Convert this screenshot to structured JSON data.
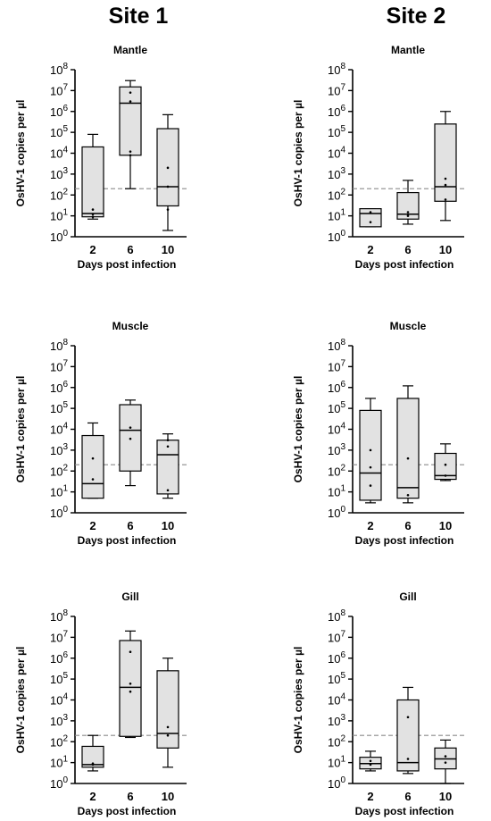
{
  "columns": [
    {
      "title": "Site 1"
    },
    {
      "title": "Site 2"
    }
  ],
  "common": {
    "ylabel": "OsHV-1 copies per µl",
    "xlabel": "Days post infection",
    "y_scale": "log10",
    "ylim": [
      1,
      100000000
    ],
    "y_ticks": [
      {
        "mant": "10",
        "exp": "0"
      },
      {
        "mant": "10",
        "exp": "1"
      },
      {
        "mant": "10",
        "exp": "2"
      },
      {
        "mant": "10",
        "exp": "3"
      },
      {
        "mant": "10",
        "exp": "4"
      },
      {
        "mant": "10",
        "exp": "5"
      },
      {
        "mant": "10",
        "exp": "6"
      },
      {
        "mant": "10",
        "exp": "7"
      },
      {
        "mant": "10",
        "exp": "8"
      }
    ],
    "categories": [
      "2",
      "6",
      "10"
    ],
    "threshold": 200,
    "colors": {
      "box_fill": "#e2e2e2",
      "box_stroke": "#000000",
      "threshold_line": "#8c8c8c",
      "points": "#000000"
    }
  },
  "chart_data": [
    {
      "type": "box",
      "site": "Site 1",
      "title": "Mantle",
      "boxes": [
        {
          "x": "2",
          "whisker_low": 7,
          "q1": 9,
          "median": 13,
          "q3": 20000,
          "whisker_high": 80000,
          "points": [
            9,
            12,
            20
          ]
        },
        {
          "x": "6",
          "whisker_low": 200,
          "q1": 8000,
          "median": 2500000,
          "q3": 15000000,
          "whisker_high": 30000000,
          "points": [
            8000,
            12000,
            3000000,
            8000000
          ]
        },
        {
          "x": "10",
          "whisker_low": 2,
          "q1": 30,
          "median": 250,
          "q3": 150000,
          "whisker_high": 700000,
          "points": [
            20,
            250,
            2000
          ]
        }
      ]
    },
    {
      "type": "box",
      "site": "Site 2",
      "title": "Mantle",
      "boxes": [
        {
          "x": "2",
          "whisker_low": 3,
          "q1": 3,
          "median": 13,
          "q3": 22,
          "whisker_high": 22,
          "points": [
            5,
            15
          ]
        },
        {
          "x": "6",
          "whisker_low": 4,
          "q1": 7,
          "median": 12,
          "q3": 130,
          "whisker_high": 500,
          "points": [
            10,
            15
          ]
        },
        {
          "x": "10",
          "whisker_low": 6,
          "q1": 50,
          "median": 250,
          "q3": 250000,
          "whisker_high": 1000000,
          "points": [
            60,
            300,
            600
          ]
        }
      ]
    },
    {
      "type": "box",
      "site": "Site 1",
      "title": "Muscle",
      "boxes": [
        {
          "x": "2",
          "whisker_low": 5,
          "q1": 5,
          "median": 25,
          "q3": 5000,
          "whisker_high": 20000,
          "points": [
            40,
            400
          ]
        },
        {
          "x": "6",
          "whisker_low": 20,
          "q1": 100,
          "median": 9000,
          "q3": 150000,
          "whisker_high": 250000,
          "points": [
            3500,
            12000
          ]
        },
        {
          "x": "10",
          "whisker_low": 5,
          "q1": 8,
          "median": 600,
          "q3": 3000,
          "whisker_high": 6000,
          "points": [
            12,
            1500,
            3000
          ]
        }
      ]
    },
    {
      "type": "box",
      "site": "Site 2",
      "title": "Muscle",
      "boxes": [
        {
          "x": "2",
          "whisker_low": 3,
          "q1": 4,
          "median": 80,
          "q3": 80000,
          "whisker_high": 300000,
          "points": [
            20,
            150,
            1000
          ]
        },
        {
          "x": "6",
          "whisker_low": 3,
          "q1": 5,
          "median": 16,
          "q3": 300000,
          "whisker_high": 1200000,
          "points": [
            7,
            400
          ]
        },
        {
          "x": "10",
          "whisker_low": 35,
          "q1": 40,
          "median": 60,
          "q3": 700,
          "whisker_high": 2000,
          "points": [
            60,
            200
          ]
        }
      ]
    },
    {
      "type": "box",
      "site": "Site 1",
      "title": "Gill",
      "boxes": [
        {
          "x": "2",
          "whisker_low": 4,
          "q1": 6,
          "median": 8,
          "q3": 60,
          "whisker_high": 200,
          "points": [
            8,
            9
          ]
        },
        {
          "x": "6",
          "whisker_low": 160,
          "q1": 180,
          "median": 40000,
          "q3": 7000000,
          "whisker_high": 20000000,
          "points": [
            25000,
            60000,
            2000000
          ]
        },
        {
          "x": "10",
          "whisker_low": 6,
          "q1": 50,
          "median": 250,
          "q3": 250000,
          "whisker_high": 1000000,
          "points": [
            200,
            500
          ]
        }
      ]
    },
    {
      "type": "box",
      "site": "Site 2",
      "title": "Gill",
      "boxes": [
        {
          "x": "2",
          "whisker_low": 4,
          "q1": 5,
          "median": 9,
          "q3": 18,
          "whisker_high": 35,
          "points": [
            8,
            12
          ]
        },
        {
          "x": "6",
          "whisker_low": 3,
          "q1": 4,
          "median": 10,
          "q3": 10000,
          "whisker_high": 40000,
          "points": [
            15,
            1500
          ]
        },
        {
          "x": "10",
          "whisker_low": 1,
          "q1": 5,
          "median": 15,
          "q3": 50,
          "whisker_high": 120,
          "points": [
            10,
            20
          ]
        }
      ]
    }
  ]
}
